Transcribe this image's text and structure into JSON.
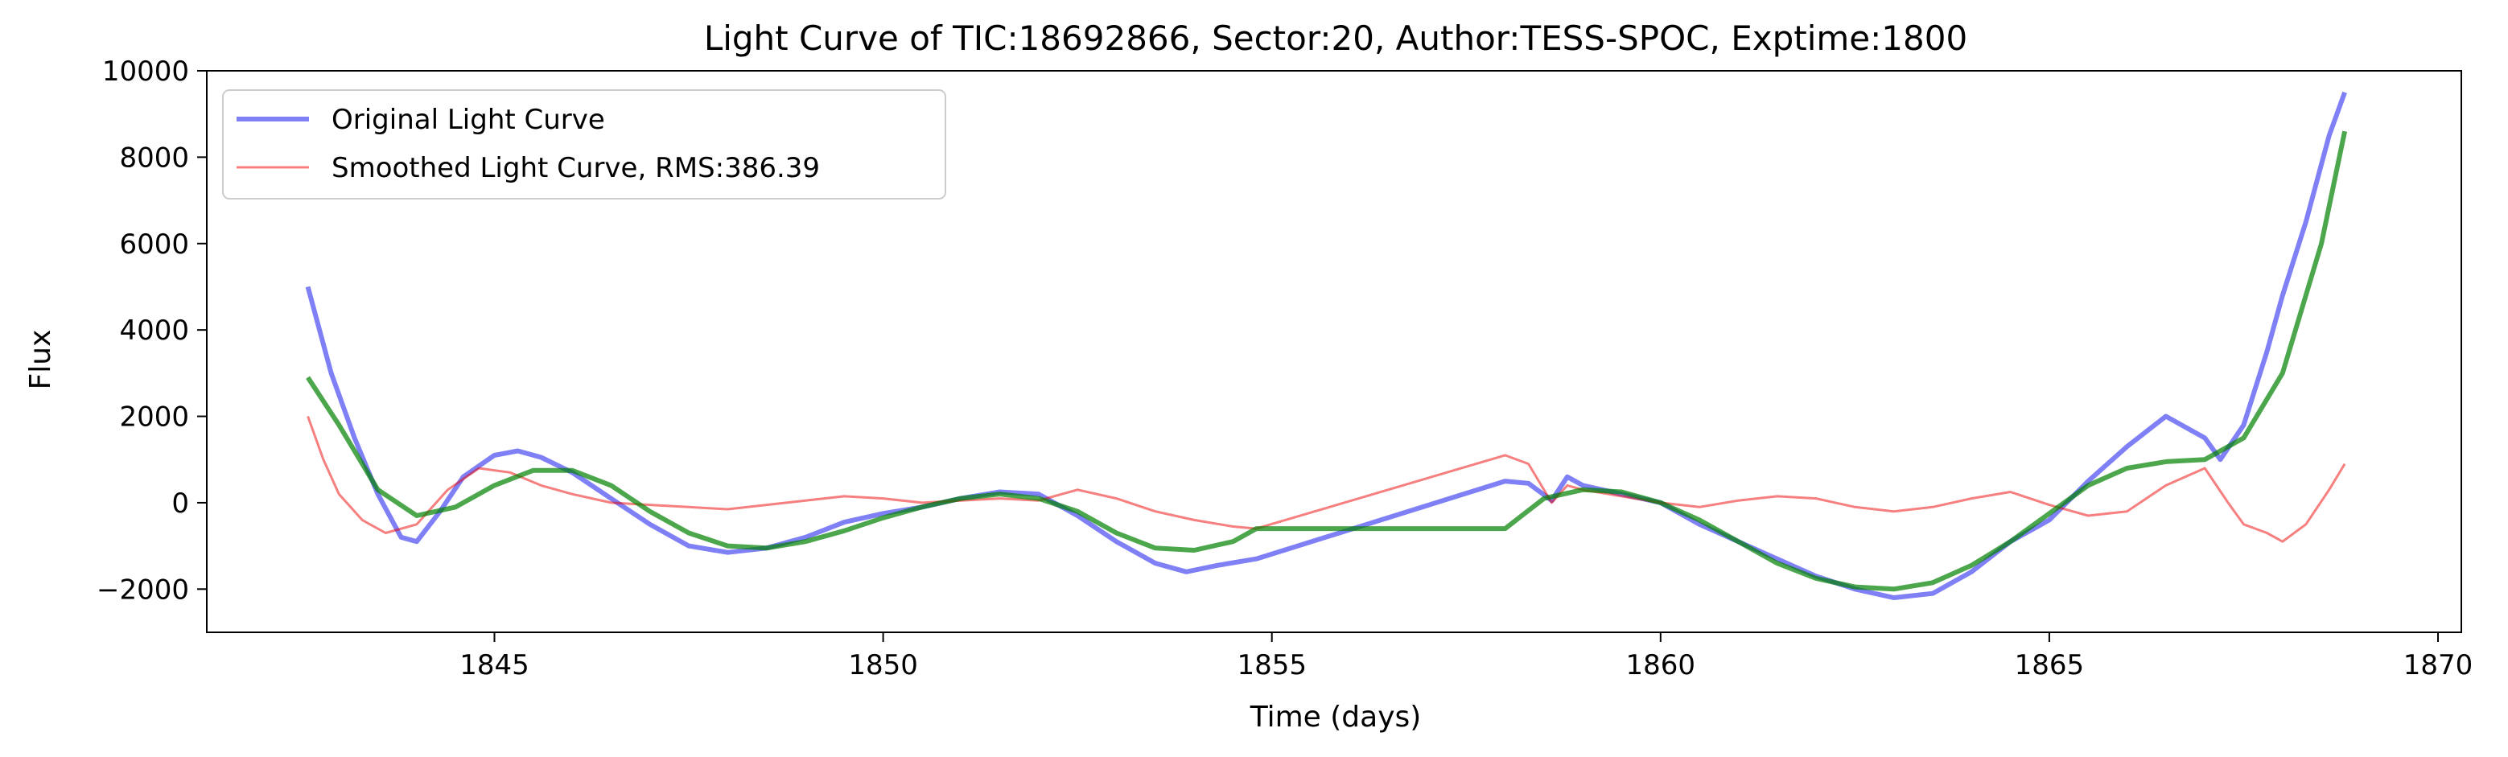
{
  "chart_data": {
    "type": "line",
    "title": "Light Curve of TIC:18692866, Sector:20, Author:TESS-SPOC, Exptime:1800",
    "xlabel": "Time (days)",
    "ylabel": "Flux",
    "xlim": [
      1841.3,
      1870.3
    ],
    "ylim": [
      -3000,
      10000
    ],
    "xticks": [
      1845,
      1850,
      1855,
      1860,
      1865,
      1870
    ],
    "yticks": [
      -2000,
      0,
      2000,
      4000,
      6000,
      8000,
      10000
    ],
    "ytick_labels": [
      "−2000",
      "0",
      "2000",
      "4000",
      "6000",
      "8000",
      "10000"
    ],
    "grid": false,
    "legend_position": "upper-left",
    "series": [
      {
        "name": "Original Light Curve",
        "color": "#0000ee",
        "opacity": 0.5,
        "in_legend": true,
        "x": [
          1842.6,
          1842.9,
          1843.2,
          1843.5,
          1843.8,
          1844.0,
          1844.3,
          1844.6,
          1845.0,
          1845.3,
          1845.6,
          1846.0,
          1846.5,
          1847.0,
          1847.5,
          1848.0,
          1848.5,
          1849.0,
          1849.5,
          1850.0,
          1850.5,
          1851.0,
          1851.5,
          1852.0,
          1852.5,
          1853.0,
          1853.5,
          1853.9,
          1854.3,
          1854.8,
          1858.0,
          1858.3,
          1858.6,
          1858.8,
          1859.0,
          1859.5,
          1860.0,
          1860.5,
          1861.0,
          1861.5,
          1862.0,
          1862.5,
          1863.0,
          1863.5,
          1864.0,
          1864.5,
          1865.0,
          1865.5,
          1866.0,
          1866.5,
          1867.0,
          1867.2,
          1867.5,
          1867.8,
          1868.0,
          1868.3,
          1868.6,
          1868.8
        ],
        "y": [
          5000,
          3000,
          1500,
          200,
          -800,
          -900,
          -200,
          600,
          1100,
          1200,
          1050,
          700,
          100,
          -500,
          -1000,
          -1150,
          -1050,
          -800,
          -450,
          -250,
          -100,
          100,
          250,
          200,
          -300,
          -900,
          -1400,
          -1600,
          -1450,
          -1300,
          500,
          450,
          50,
          600,
          400,
          200,
          0,
          -500,
          -900,
          -1300,
          -1700,
          -2000,
          -2200,
          -2100,
          -1600,
          -900,
          -400,
          500,
          1300,
          2000,
          1500,
          1000,
          1800,
          3500,
          4800,
          6500,
          8500,
          9500
        ]
      },
      {
        "name": "Smoothed Light Curve, RMS:386.39",
        "color": "#ee0000",
        "opacity": 0.5,
        "in_legend": true,
        "x": [
          1842.6,
          1842.8,
          1843.0,
          1843.3,
          1843.6,
          1844.0,
          1844.4,
          1844.8,
          1845.2,
          1845.6,
          1846.0,
          1846.5,
          1847.0,
          1847.5,
          1848.0,
          1848.5,
          1849.0,
          1849.5,
          1850.0,
          1850.5,
          1851.0,
          1851.5,
          1852.0,
          1852.5,
          1853.0,
          1853.5,
          1854.0,
          1854.5,
          1854.8,
          1858.0,
          1858.3,
          1858.6,
          1858.8,
          1859.0,
          1859.5,
          1860.0,
          1860.5,
          1861.0,
          1861.5,
          1862.0,
          1862.5,
          1863.0,
          1863.5,
          1864.0,
          1864.5,
          1865.0,
          1865.5,
          1866.0,
          1866.5,
          1867.0,
          1867.3,
          1867.5,
          1867.8,
          1868.0,
          1868.3,
          1868.6,
          1868.8
        ],
        "y": [
          2000,
          1000,
          200,
          -400,
          -700,
          -500,
          300,
          800,
          700,
          400,
          200,
          0,
          -50,
          -100,
          -150,
          -50,
          50,
          150,
          100,
          0,
          50,
          100,
          50,
          300,
          100,
          -200,
          -400,
          -550,
          -600,
          1100,
          900,
          0,
          400,
          300,
          150,
          0,
          -100,
          50,
          150,
          100,
          -100,
          -200,
          -100,
          100,
          250,
          -50,
          -300,
          -200,
          400,
          800,
          0,
          -500,
          -700,
          -900,
          -500,
          300,
          900
        ]
      },
      {
        "name": "",
        "color": "#008000",
        "opacity": 0.7,
        "in_legend": false,
        "x": [
          1842.6,
          1843.0,
          1843.5,
          1844.0,
          1844.5,
          1845.0,
          1845.5,
          1846.0,
          1846.5,
          1847.0,
          1847.5,
          1848.0,
          1848.5,
          1849.0,
          1849.5,
          1850.0,
          1850.5,
          1851.0,
          1851.5,
          1852.0,
          1852.5,
          1853.0,
          1853.5,
          1854.0,
          1854.5,
          1854.8,
          1858.0,
          1858.5,
          1859.0,
          1859.5,
          1860.0,
          1860.5,
          1861.0,
          1861.5,
          1862.0,
          1862.5,
          1863.0,
          1863.5,
          1864.0,
          1864.5,
          1865.0,
          1865.5,
          1866.0,
          1866.5,
          1867.0,
          1867.5,
          1868.0,
          1868.5,
          1868.8
        ],
        "y": [
          2900,
          1800,
          300,
          -300,
          -100,
          400,
          750,
          750,
          400,
          -200,
          -700,
          -1000,
          -1050,
          -900,
          -650,
          -350,
          -100,
          100,
          200,
          100,
          -200,
          -700,
          -1050,
          -1100,
          -900,
          -600,
          -600,
          100,
          300,
          250,
          0,
          -400,
          -900,
          -1400,
          -1750,
          -1950,
          -2000,
          -1850,
          -1450,
          -900,
          -250,
          400,
          800,
          950,
          1000,
          1500,
          3000,
          6000,
          8600
        ]
      }
    ]
  }
}
